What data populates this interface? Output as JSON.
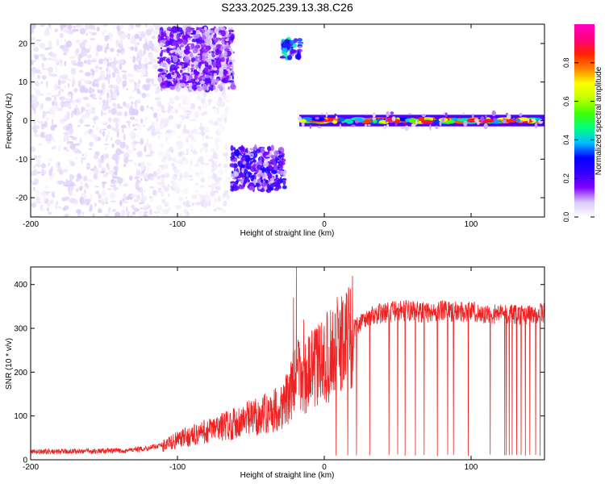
{
  "title": "S233.2025.239.13.38.C26",
  "chart_data": [
    {
      "type": "heatmap",
      "title": "S233.2025.239.13.38.C26",
      "xlabel": "Height of straight line (km)",
      "ylabel": "Frequency (Hz)",
      "xlim": [
        -200,
        150
      ],
      "ylim": [
        -25,
        25
      ],
      "x_ticks": [
        -200,
        -100,
        0,
        100
      ],
      "y_ticks": [
        -20,
        -10,
        0,
        10,
        20
      ],
      "colorbar": {
        "label": "Normalized spectral amplitude",
        "range": [
          0,
          1
        ],
        "ticks": [
          0.0,
          0.2,
          0.4,
          0.6,
          0.8
        ],
        "tick_labels": [
          "0.0",
          "0.2",
          "0.4",
          "0.6",
          "0.8"
        ],
        "colors": [
          "#ffffff",
          "#d9c8f8",
          "#8000ff",
          "#3000ff",
          "#0000ff",
          "#00c0ff",
          "#00ff80",
          "#40ff00",
          "#c0ff00",
          "#ffff00",
          "#ff8000",
          "#ff2000",
          "#ff0080",
          "#ff00c0"
        ]
      },
      "regions": [
        {
          "x": [
            -200,
            -115
          ],
          "y": [
            -25,
            25
          ],
          "amplitude": 0.05,
          "kind": "scattered noise"
        },
        {
          "x": [
            -115,
            -65
          ],
          "y": [
            -25,
            25
          ],
          "amplitude": 0.03,
          "kind": "sparse noise"
        },
        {
          "x": [
            -112,
            -62
          ],
          "y": [
            8,
            24
          ],
          "amplitude": 0.15,
          "kind": "cluster"
        },
        {
          "x": [
            -63,
            -27
          ],
          "y": [
            -18,
            -7
          ],
          "amplitude": 0.2,
          "kind": "cluster"
        },
        {
          "x": [
            -29,
            -16
          ],
          "y": [
            16,
            21
          ],
          "amplitude": 0.3,
          "kind": "cluster"
        },
        {
          "x": [
            -17,
            150
          ],
          "y": [
            -1.5,
            1.5
          ],
          "amplitude": 0.85,
          "kind": "band at 0 Hz"
        }
      ]
    },
    {
      "type": "line",
      "xlabel": "Height of straight line (km)",
      "ylabel": "SNR (10 * v/v)",
      "xlim": [
        -200,
        150
      ],
      "ylim": [
        0,
        440
      ],
      "x_ticks": [
        -200,
        -100,
        0,
        100
      ],
      "y_ticks": [
        0,
        100,
        200,
        300,
        400
      ],
      "color": "#ee2222",
      "series": [
        {
          "x": [
            -200,
            -190,
            -180,
            -170,
            -160,
            -150,
            -140,
            -130,
            -120,
            -110,
            -100,
            -90,
            -80,
            -70,
            -60,
            -50,
            -40,
            -30,
            -25,
            -20,
            -18,
            -15,
            -10,
            -5,
            0,
            5,
            10,
            15,
            20,
            25,
            30,
            35,
            40,
            50,
            60,
            70,
            80,
            90,
            100,
            110,
            120,
            130,
            140,
            150
          ],
          "y": [
            15,
            16,
            16,
            17,
            17,
            18,
            18,
            20,
            24,
            32,
            45,
            55,
            65,
            75,
            85,
            95,
            105,
            120,
            140,
            180,
            200,
            180,
            200,
            215,
            225,
            245,
            260,
            280,
            300,
            315,
            325,
            332,
            335,
            340,
            340,
            335,
            340,
            338,
            340,
            330,
            335,
            330,
            333,
            335
          ],
          "dropouts": [
            1,
            8,
            16,
            22,
            31,
            44,
            50,
            55,
            62,
            68,
            77,
            84,
            88,
            98,
            113,
            123,
            124,
            126,
            128,
            131,
            134,
            137,
            140,
            144,
            147
          ],
          "spikes": [
            [
              -19,
              440
            ],
            [
              -21,
              370
            ],
            [
              -14,
              320
            ]
          ]
        }
      ]
    }
  ]
}
